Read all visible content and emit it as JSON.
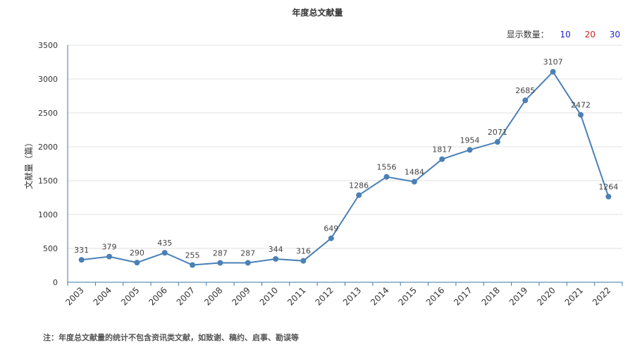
{
  "title": "年度总文献量",
  "display_controls": {
    "label": "显示数量：",
    "options": [
      {
        "label": "10",
        "color": "#1f1fd6"
      },
      {
        "label": "20",
        "color": "#d61f1f"
      },
      {
        "label": "30",
        "color": "#1f1fd6"
      }
    ]
  },
  "note": "注：年度总文献量的统计不包含资讯类文献，如致谢、稿约、启事、勘误等",
  "chart_data": {
    "type": "line",
    "title": "年度总文献量",
    "ylabel": "文献量（篇）",
    "xlabel": "",
    "ylim": [
      0,
      3500
    ],
    "yticks": [
      0,
      500,
      1000,
      1500,
      2000,
      2500,
      3000,
      3500
    ],
    "grid": true,
    "line_color": "#4a80b6",
    "categories": [
      "2003",
      "2004",
      "2005",
      "2006",
      "2007",
      "2008",
      "2009",
      "2010",
      "2011",
      "2012",
      "2013",
      "2014",
      "2015",
      "2016",
      "2017",
      "2018",
      "2019",
      "2020",
      "2021",
      "2022"
    ],
    "values": [
      331,
      379,
      290,
      435,
      255,
      287,
      287,
      344,
      316,
      649,
      1286,
      1556,
      1484,
      1817,
      1954,
      2071,
      2685,
      3107,
      2472,
      1264
    ]
  }
}
